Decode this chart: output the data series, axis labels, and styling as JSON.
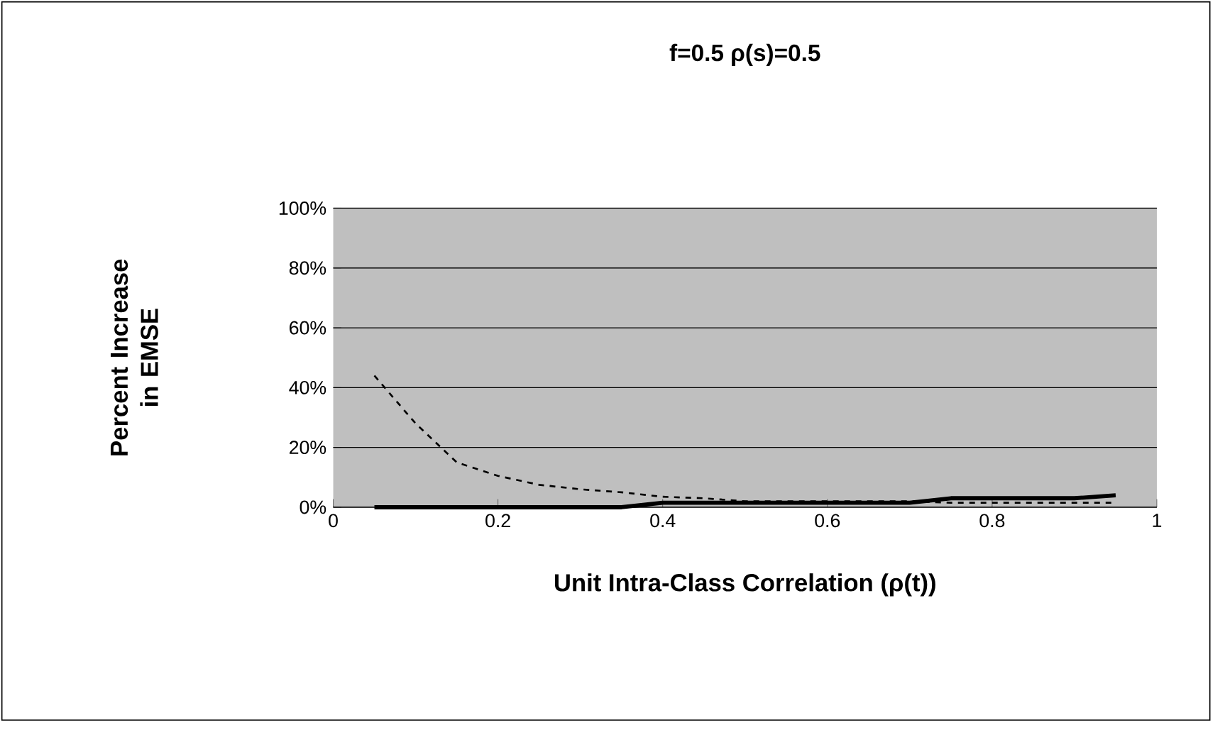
{
  "chart_data": {
    "type": "line",
    "title": "f=0.5     ρ(s)=0.5",
    "xlabel": "Unit Intra-Class Correlation (ρ(t))",
    "ylabel": "Percent Increase in EMSE",
    "xlim": [
      0,
      1
    ],
    "xticks": [
      0,
      0.2,
      0.4,
      0.6,
      0.8,
      1
    ],
    "ylim": [
      0,
      100
    ],
    "yticks": [
      {
        "value": 0,
        "label": "0%"
      },
      {
        "value": 20,
        "label": "20%"
      },
      {
        "value": 40,
        "label": "40%"
      },
      {
        "value": 60,
        "label": "60%"
      },
      {
        "value": 80,
        "label": "80%"
      },
      {
        "value": 100,
        "label": "100%"
      }
    ],
    "grid": "y",
    "marker": "none",
    "series": [
      {
        "color": "#000000",
        "line_style": "dashed",
        "x": [
          0.05,
          0.1,
          0.15,
          0.2,
          0.25,
          0.3,
          0.35,
          0.4,
          0.45,
          0.5,
          0.55,
          0.6,
          0.65,
          0.7,
          0.75,
          0.8,
          0.85,
          0.9,
          0.95
        ],
        "values": [
          44,
          28,
          15,
          10.5,
          7.5,
          6,
          5,
          3.5,
          3,
          2,
          2,
          2,
          2,
          2,
          1.5,
          1.5,
          1.5,
          1.5,
          1.5
        ]
      },
      {
        "color": "#000000",
        "line_style": "solid",
        "x": [
          0.05,
          0.1,
          0.15,
          0.2,
          0.25,
          0.3,
          0.35,
          0.4,
          0.45,
          0.5,
          0.55,
          0.6,
          0.65,
          0.7,
          0.75,
          0.8,
          0.85,
          0.9,
          0.95
        ],
        "values": [
          0,
          0,
          0,
          0,
          0,
          0,
          0,
          1.5,
          1.5,
          1.5,
          1.5,
          1.5,
          1.5,
          1.5,
          3,
          3,
          3,
          3,
          4
        ]
      }
    ]
  }
}
